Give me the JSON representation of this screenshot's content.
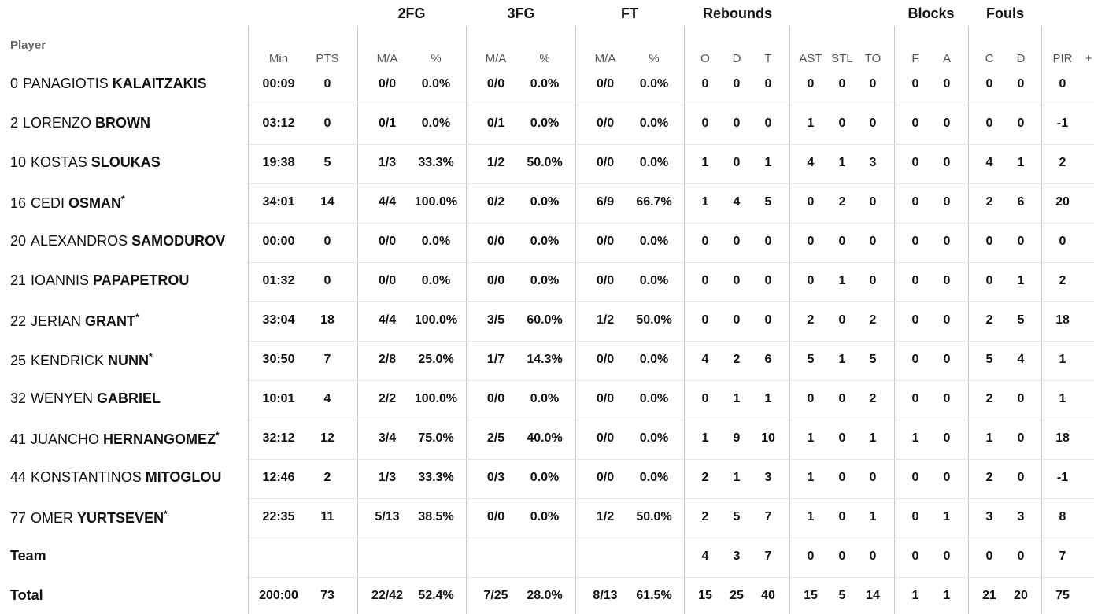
{
  "header": {
    "player_label": "Player",
    "plus_icon": "+",
    "groups": [
      "2FG",
      "3FG",
      "FT",
      "Rebounds",
      "Blocks",
      "Fouls"
    ],
    "columns": [
      "Min",
      "PTS",
      "M/A",
      "%",
      "M/A",
      "%",
      "M/A",
      "%",
      "O",
      "D",
      "T",
      "AST",
      "STL",
      "TO",
      "F",
      "A",
      "C",
      "D",
      "PIR"
    ]
  },
  "players": [
    {
      "number": "0",
      "first": "PANAGIOTIS",
      "last": "KALAITZAKIS",
      "starter": false,
      "stats": [
        "00:09",
        "0",
        "0/0",
        "0.0%",
        "0/0",
        "0.0%",
        "0/0",
        "0.0%",
        "0",
        "0",
        "0",
        "0",
        "0",
        "0",
        "0",
        "0",
        "0",
        "0",
        "0"
      ]
    },
    {
      "number": "2",
      "first": "LORENZO",
      "last": "BROWN",
      "starter": false,
      "stats": [
        "03:12",
        "0",
        "0/1",
        "0.0%",
        "0/1",
        "0.0%",
        "0/0",
        "0.0%",
        "0",
        "0",
        "0",
        "1",
        "0",
        "0",
        "0",
        "0",
        "0",
        "0",
        "-1"
      ]
    },
    {
      "number": "10",
      "first": "KOSTAS",
      "last": "SLOUKAS",
      "starter": false,
      "stats": [
        "19:38",
        "5",
        "1/3",
        "33.3%",
        "1/2",
        "50.0%",
        "0/0",
        "0.0%",
        "1",
        "0",
        "1",
        "4",
        "1",
        "3",
        "0",
        "0",
        "4",
        "1",
        "2"
      ]
    },
    {
      "number": "16",
      "first": "CEDI",
      "last": "OSMAN",
      "starter": true,
      "stats": [
        "34:01",
        "14",
        "4/4",
        "100.0%",
        "0/2",
        "0.0%",
        "6/9",
        "66.7%",
        "1",
        "4",
        "5",
        "0",
        "2",
        "0",
        "0",
        "0",
        "2",
        "6",
        "20"
      ]
    },
    {
      "number": "20",
      "first": "ALEXANDROS",
      "last": "SAMODUROV",
      "starter": false,
      "stats": [
        "00:00",
        "0",
        "0/0",
        "0.0%",
        "0/0",
        "0.0%",
        "0/0",
        "0.0%",
        "0",
        "0",
        "0",
        "0",
        "0",
        "0",
        "0",
        "0",
        "0",
        "0",
        "0"
      ]
    },
    {
      "number": "21",
      "first": "IOANNIS",
      "last": "PAPAPETROU",
      "starter": false,
      "stats": [
        "01:32",
        "0",
        "0/0",
        "0.0%",
        "0/0",
        "0.0%",
        "0/0",
        "0.0%",
        "0",
        "0",
        "0",
        "0",
        "1",
        "0",
        "0",
        "0",
        "0",
        "1",
        "2"
      ]
    },
    {
      "number": "22",
      "first": "JERIAN",
      "last": "GRANT",
      "starter": true,
      "stats": [
        "33:04",
        "18",
        "4/4",
        "100.0%",
        "3/5",
        "60.0%",
        "1/2",
        "50.0%",
        "0",
        "0",
        "0",
        "2",
        "0",
        "2",
        "0",
        "0",
        "2",
        "5",
        "18"
      ]
    },
    {
      "number": "25",
      "first": "KENDRICK",
      "last": "NUNN",
      "starter": true,
      "stats": [
        "30:50",
        "7",
        "2/8",
        "25.0%",
        "1/7",
        "14.3%",
        "0/0",
        "0.0%",
        "4",
        "2",
        "6",
        "5",
        "1",
        "5",
        "0",
        "0",
        "5",
        "4",
        "1"
      ]
    },
    {
      "number": "32",
      "first": "WENYEN",
      "last": "GABRIEL",
      "starter": false,
      "stats": [
        "10:01",
        "4",
        "2/2",
        "100.0%",
        "0/0",
        "0.0%",
        "0/0",
        "0.0%",
        "0",
        "1",
        "1",
        "0",
        "0",
        "2",
        "0",
        "0",
        "2",
        "0",
        "1"
      ]
    },
    {
      "number": "41",
      "first": "JUANCHO",
      "last": "HERNANGOMEZ",
      "starter": true,
      "stats": [
        "32:12",
        "12",
        "3/4",
        "75.0%",
        "2/5",
        "40.0%",
        "0/0",
        "0.0%",
        "1",
        "9",
        "10",
        "1",
        "0",
        "1",
        "1",
        "0",
        "1",
        "0",
        "18"
      ]
    },
    {
      "number": "44",
      "first": "KONSTANTINOS",
      "last": "MITOGLOU",
      "starter": false,
      "stats": [
        "12:46",
        "2",
        "1/3",
        "33.3%",
        "0/3",
        "0.0%",
        "0/0",
        "0.0%",
        "2",
        "1",
        "3",
        "1",
        "0",
        "0",
        "0",
        "0",
        "2",
        "0",
        "-1"
      ]
    },
    {
      "number": "77",
      "first": "OMER",
      "last": "YURTSEVEN",
      "starter": true,
      "stats": [
        "22:35",
        "11",
        "5/13",
        "38.5%",
        "0/0",
        "0.0%",
        "1/2",
        "50.0%",
        "2",
        "5",
        "7",
        "1",
        "0",
        "1",
        "0",
        "1",
        "3",
        "3",
        "8"
      ]
    }
  ],
  "starter_mark": "*",
  "team": {
    "label": "Team",
    "stats": [
      "",
      "",
      "",
      "",
      "",
      "",
      "",
      "",
      "4",
      "3",
      "7",
      "0",
      "0",
      "0",
      "0",
      "0",
      "0",
      "0",
      "7"
    ]
  },
  "total": {
    "label": "Total",
    "stats": [
      "200:00",
      "73",
      "22/42",
      "52.4%",
      "7/25",
      "28.0%",
      "8/13",
      "61.5%",
      "15",
      "25",
      "40",
      "15",
      "5",
      "14",
      "1",
      "1",
      "21",
      "20",
      "75"
    ]
  }
}
